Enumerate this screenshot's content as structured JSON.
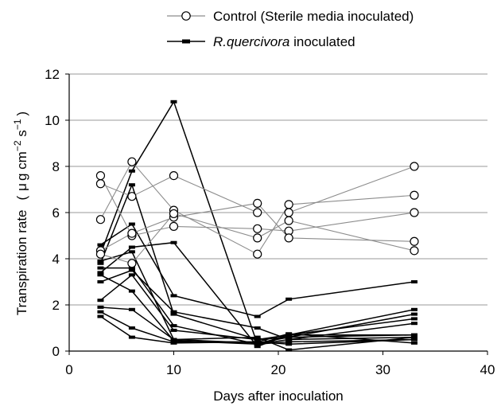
{
  "chart_data": {
    "type": "line",
    "xlabel": "Days after inoculation",
    "ylabel_main": "Transpiration rate",
    "ylabel_unit_open": "(",
    "ylabel_unit_mu": "μ",
    "ylabel_unit_g": "g cm",
    "ylabel_unit_exp1": "−2",
    "ylabel_unit_s": " s",
    "ylabel_unit_exp2": "−1",
    "ylabel_unit_close": ")",
    "xlim": [
      0,
      40
    ],
    "ylim": [
      0,
      12
    ],
    "x_ticks": [
      0,
      10,
      20,
      30,
      40
    ],
    "y_ticks": [
      0,
      2,
      4,
      6,
      8,
      10,
      12
    ],
    "grid": "horizontal",
    "legend_position": "top",
    "legend": [
      {
        "label": "Control (Sterile media inoculated)",
        "marker": "open-circle",
        "line_color": "#8c8c8c"
      },
      {
        "label_italic": "R.quercivora",
        "label_rest": " inoculated",
        "marker": "filled-square",
        "line_color": "#000000"
      }
    ],
    "series": [
      {
        "group": "control",
        "x": [
          3,
          6,
          10,
          18,
          21,
          33
        ],
        "y": [
          7.6,
          5.0,
          5.4,
          5.3,
          5.2,
          6.0
        ]
      },
      {
        "group": "control",
        "x": [
          3,
          6,
          10,
          18,
          21,
          33
        ],
        "y": [
          7.25,
          6.7,
          7.6,
          6.0,
          6.0,
          8.0
        ]
      },
      {
        "group": "control",
        "x": [
          3,
          6,
          10,
          18,
          21,
          33
        ],
        "y": [
          5.7,
          8.2,
          6.1,
          4.2,
          6.35,
          6.75
        ]
      },
      {
        "group": "control",
        "x": [
          3,
          6,
          10,
          18,
          21,
          33
        ],
        "y": [
          4.35,
          5.1,
          5.8,
          6.4,
          4.9,
          4.75
        ]
      },
      {
        "group": "control",
        "x": [
          3,
          6,
          10,
          18,
          21,
          33
        ],
        "y": [
          4.2,
          3.8,
          5.95,
          4.9,
          5.65,
          4.35
        ]
      },
      {
        "group": "inoculated",
        "x": [
          3,
          6,
          10,
          18,
          21,
          33
        ],
        "y": [
          4.6,
          5.5,
          2.4,
          1.5,
          2.25,
          3.0
        ]
      },
      {
        "group": "inoculated",
        "x": [
          3,
          6,
          10,
          18,
          21,
          33
        ],
        "y": [
          4.2,
          7.8,
          10.8,
          0.3,
          0.7,
          1.8
        ]
      },
      {
        "group": "inoculated",
        "x": [
          3,
          6,
          10,
          18,
          21,
          33
        ],
        "y": [
          3.8,
          7.2,
          1.6,
          0.5,
          0.6,
          1.6
        ]
      },
      {
        "group": "inoculated",
        "x": [
          3,
          6,
          10,
          18,
          21,
          33
        ],
        "y": [
          3.4,
          4.5,
          4.7,
          0.2,
          0.7,
          1.4
        ]
      },
      {
        "group": "inoculated",
        "x": [
          3,
          6,
          10,
          18,
          21,
          33
        ],
        "y": [
          3.0,
          3.5,
          1.7,
          1.0,
          0.5,
          1.2
        ]
      },
      {
        "group": "inoculated",
        "x": [
          3,
          6,
          10,
          18,
          21,
          33
        ],
        "y": [
          2.2,
          3.3,
          0.9,
          0.5,
          0.7,
          0.7
        ]
      },
      {
        "group": "inoculated",
        "x": [
          3,
          6,
          10,
          18,
          21,
          33
        ],
        "y": [
          1.9,
          1.8,
          0.5,
          0.6,
          0.05,
          0.6
        ]
      },
      {
        "group": "inoculated",
        "x": [
          3,
          6,
          10,
          18,
          21,
          33
        ],
        "y": [
          1.7,
          1.0,
          0.4,
          0.4,
          0.3,
          0.5
        ]
      },
      {
        "group": "inoculated",
        "x": [
          3,
          6,
          10,
          18,
          21,
          33
        ],
        "y": [
          1.5,
          0.6,
          0.35,
          0.4,
          0.75,
          0.35
        ]
      },
      {
        "group": "inoculated",
        "x": [
          3,
          6,
          10,
          18,
          21,
          33
        ],
        "y": [
          3.6,
          3.6,
          1.1,
          0.3,
          0.4,
          0.5
        ]
      },
      {
        "group": "inoculated",
        "x": [
          3,
          6,
          10,
          18,
          21,
          33
        ],
        "y": [
          3.9,
          4.3,
          0.5,
          0.35,
          0.6,
          0.7
        ]
      },
      {
        "group": "inoculated",
        "x": [
          3,
          6,
          10,
          18,
          21,
          33
        ],
        "y": [
          3.3,
          2.6,
          0.45,
          0.3,
          0.5,
          0.6
        ]
      }
    ]
  }
}
